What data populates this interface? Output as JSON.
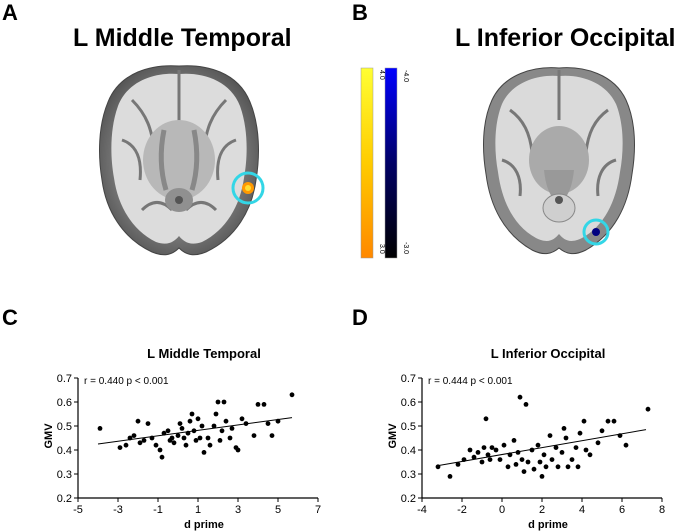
{
  "panels": {
    "A": {
      "letter": "A",
      "title": "L Middle Temporal"
    },
    "B": {
      "letter": "B",
      "title": "L Inferior Occipital"
    },
    "C": {
      "letter": "C"
    },
    "D": {
      "letter": "D"
    }
  },
  "colorbars": {
    "warm": {
      "top_label": "4.0",
      "bottom_label": "3.0",
      "colors": [
        "#ffff33",
        "#ffcc00",
        "#ff8800"
      ]
    },
    "cool": {
      "top_label": "-4.0",
      "bottom_label": "-3.0",
      "colors": [
        "#0000ff",
        "#000066",
        "#000000"
      ]
    }
  },
  "chart_data": [
    {
      "type": "scatter",
      "title": "L Middle Temporal",
      "xlabel": "d prime",
      "ylabel": "GMV",
      "annotation": "r = 0.440 p < 0.001",
      "xlim": [
        -5,
        7
      ],
      "ylim": [
        0.2,
        0.7
      ],
      "xticks": [
        "-5",
        "-3",
        "-1",
        "1",
        "3",
        "5",
        "7"
      ],
      "yticks": [
        "0.2",
        "0.3",
        "0.4",
        "0.5",
        "0.6",
        "0.7"
      ],
      "fit_line": {
        "x": [
          -4,
          5.7
        ],
        "y": [
          0.425,
          0.535
        ]
      },
      "points": [
        [
          -3.9,
          0.49
        ],
        [
          -2.9,
          0.41
        ],
        [
          -2.6,
          0.42
        ],
        [
          -2.4,
          0.45
        ],
        [
          -2.2,
          0.46
        ],
        [
          -2.0,
          0.52
        ],
        [
          -1.9,
          0.43
        ],
        [
          -1.7,
          0.44
        ],
        [
          -1.5,
          0.51
        ],
        [
          -1.3,
          0.45
        ],
        [
          -1.1,
          0.42
        ],
        [
          -0.9,
          0.4
        ],
        [
          -0.8,
          0.37
        ],
        [
          -0.7,
          0.47
        ],
        [
          -0.5,
          0.48
        ],
        [
          -0.4,
          0.44
        ],
        [
          -0.3,
          0.45
        ],
        [
          -0.2,
          0.43
        ],
        [
          0.0,
          0.46
        ],
        [
          0.1,
          0.51
        ],
        [
          0.2,
          0.49
        ],
        [
          0.3,
          0.45
        ],
        [
          0.4,
          0.42
        ],
        [
          0.5,
          0.47
        ],
        [
          0.6,
          0.52
        ],
        [
          0.7,
          0.55
        ],
        [
          0.8,
          0.48
        ],
        [
          0.9,
          0.44
        ],
        [
          1.0,
          0.53
        ],
        [
          1.1,
          0.45
        ],
        [
          1.2,
          0.5
        ],
        [
          1.3,
          0.39
        ],
        [
          1.5,
          0.45
        ],
        [
          1.6,
          0.42
        ],
        [
          1.8,
          0.5
        ],
        [
          1.9,
          0.55
        ],
        [
          2.0,
          0.6
        ],
        [
          2.1,
          0.44
        ],
        [
          2.2,
          0.48
        ],
        [
          2.3,
          0.6
        ],
        [
          2.4,
          0.52
        ],
        [
          2.6,
          0.45
        ],
        [
          2.7,
          0.49
        ],
        [
          2.9,
          0.41
        ],
        [
          3.0,
          0.4
        ],
        [
          3.2,
          0.53
        ],
        [
          3.4,
          0.51
        ],
        [
          3.8,
          0.46
        ],
        [
          4.0,
          0.59
        ],
        [
          4.3,
          0.59
        ],
        [
          4.5,
          0.51
        ],
        [
          4.7,
          0.46
        ],
        [
          5.0,
          0.52
        ],
        [
          5.7,
          0.63
        ]
      ]
    },
    {
      "type": "scatter",
      "title": "L Inferior Occipital",
      "xlabel": "d prime",
      "ylabel": "GMV",
      "annotation": "r = 0.444 p < 0.001",
      "xlim": [
        -4,
        8
      ],
      "ylim": [
        0.2,
        0.7
      ],
      "xticks": [
        "-4",
        "-2",
        "0",
        "2",
        "4",
        "6",
        "8"
      ],
      "yticks": [
        "0.2",
        "0.3",
        "0.4",
        "0.5",
        "0.6",
        "0.7"
      ],
      "fit_line": {
        "x": [
          -3.2,
          7.2
        ],
        "y": [
          0.335,
          0.485
        ]
      },
      "points": [
        [
          -3.2,
          0.33
        ],
        [
          -2.6,
          0.29
        ],
        [
          -2.2,
          0.34
        ],
        [
          -1.9,
          0.36
        ],
        [
          -1.6,
          0.4
        ],
        [
          -1.4,
          0.37
        ],
        [
          -1.2,
          0.39
        ],
        [
          -1.0,
          0.35
        ],
        [
          -0.9,
          0.41
        ],
        [
          -0.8,
          0.53
        ],
        [
          -0.7,
          0.38
        ],
        [
          -0.6,
          0.36
        ],
        [
          -0.5,
          0.41
        ],
        [
          -0.3,
          0.4
        ],
        [
          -0.1,
          0.36
        ],
        [
          0.1,
          0.42
        ],
        [
          0.3,
          0.33
        ],
        [
          0.4,
          0.38
        ],
        [
          0.6,
          0.44
        ],
        [
          0.7,
          0.34
        ],
        [
          0.8,
          0.39
        ],
        [
          0.9,
          0.62
        ],
        [
          1.0,
          0.36
        ],
        [
          1.1,
          0.31
        ],
        [
          1.2,
          0.59
        ],
        [
          1.3,
          0.35
        ],
        [
          1.5,
          0.4
        ],
        [
          1.6,
          0.32
        ],
        [
          1.8,
          0.42
        ],
        [
          1.9,
          0.35
        ],
        [
          2.0,
          0.29
        ],
        [
          2.1,
          0.38
        ],
        [
          2.2,
          0.33
        ],
        [
          2.4,
          0.46
        ],
        [
          2.5,
          0.36
        ],
        [
          2.7,
          0.41
        ],
        [
          2.8,
          0.33
        ],
        [
          3.0,
          0.39
        ],
        [
          3.1,
          0.49
        ],
        [
          3.2,
          0.45
        ],
        [
          3.3,
          0.33
        ],
        [
          3.5,
          0.36
        ],
        [
          3.7,
          0.41
        ],
        [
          3.8,
          0.33
        ],
        [
          3.9,
          0.47
        ],
        [
          4.1,
          0.52
        ],
        [
          4.2,
          0.4
        ],
        [
          4.4,
          0.38
        ],
        [
          4.8,
          0.43
        ],
        [
          5.0,
          0.48
        ],
        [
          5.3,
          0.52
        ],
        [
          5.6,
          0.52
        ],
        [
          5.9,
          0.46
        ],
        [
          6.2,
          0.42
        ],
        [
          7.3,
          0.57
        ]
      ]
    }
  ]
}
